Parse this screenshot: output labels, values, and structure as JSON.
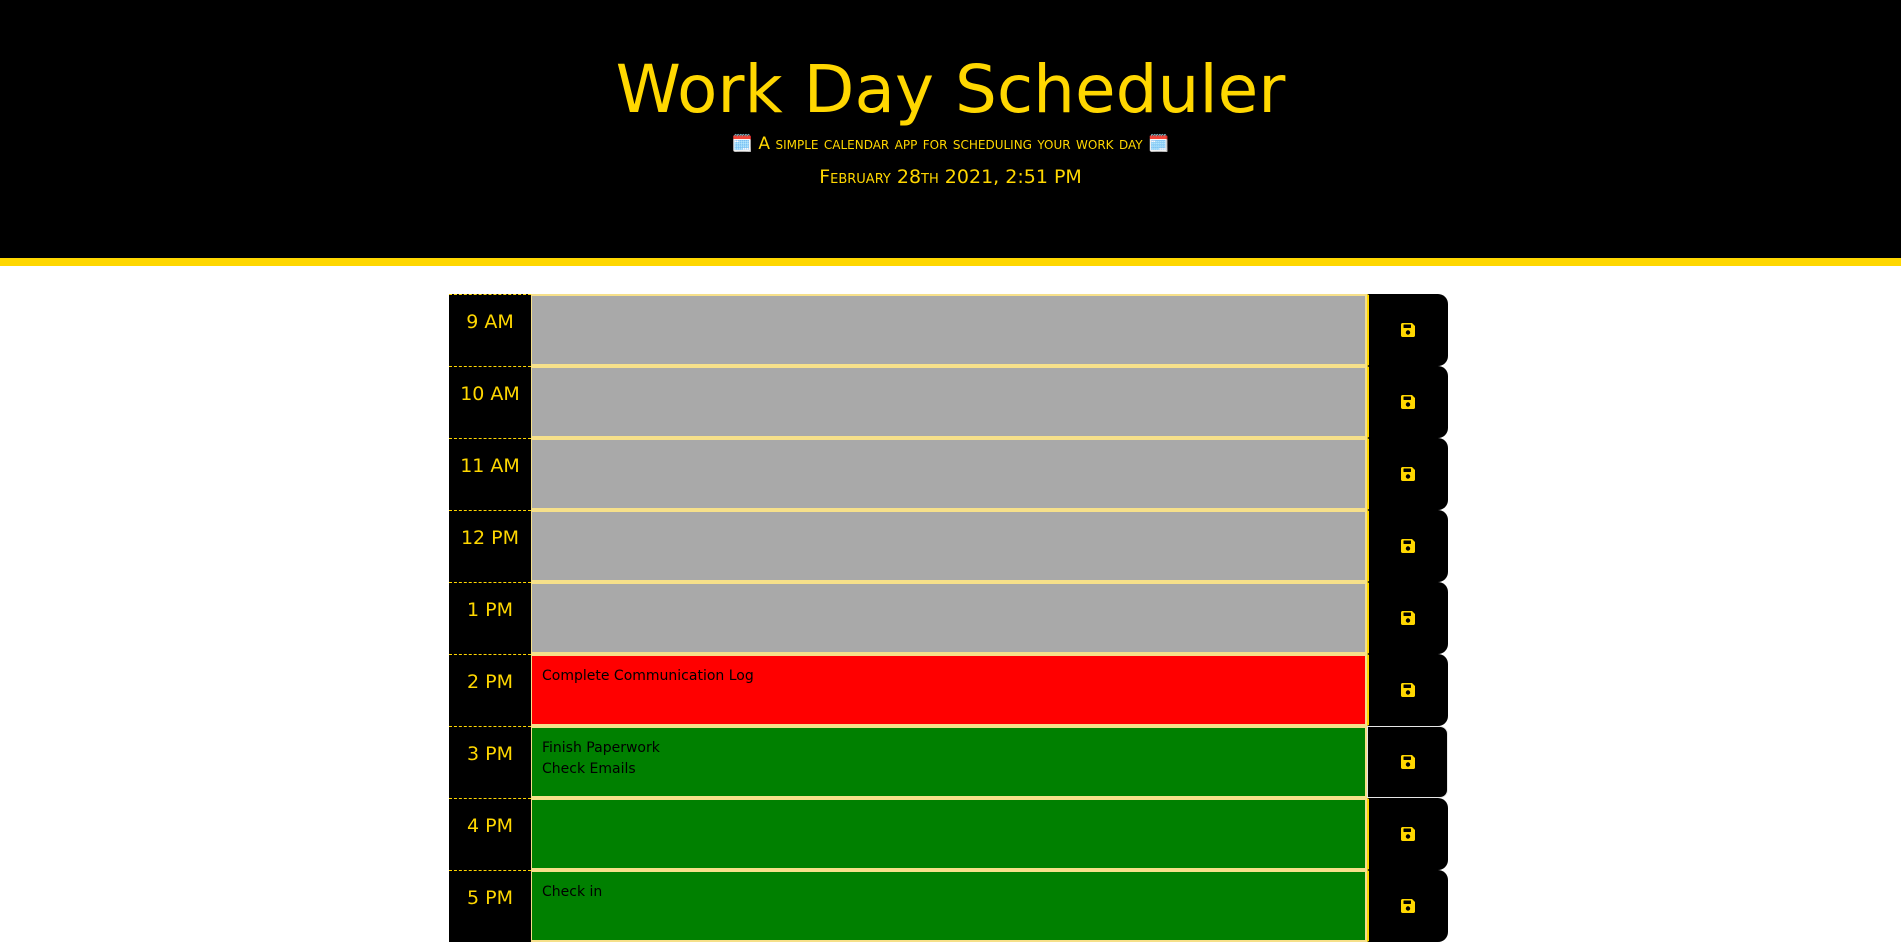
{
  "header": {
    "title": "Work Day Scheduler",
    "lead": "🗓️ A simple calendar app for scheduling your work day 🗓️",
    "current_day": "February 28th 2021, 2:51 PM"
  },
  "colors": {
    "accent": "#ffd700",
    "past": "#a9a9a9",
    "present": "#ff0000",
    "future": "#008000"
  },
  "save_icon": "floppy-disk-icon",
  "timeblocks": [
    {
      "hour": "9 AM",
      "status": "past",
      "text": ""
    },
    {
      "hour": "10 AM",
      "status": "past",
      "text": ""
    },
    {
      "hour": "11 AM",
      "status": "past",
      "text": ""
    },
    {
      "hour": "12 PM",
      "status": "past",
      "text": ""
    },
    {
      "hour": "1 PM",
      "status": "past",
      "text": ""
    },
    {
      "hour": "2 PM",
      "status": "present",
      "text": "Complete Communication Log"
    },
    {
      "hour": "3 PM",
      "status": "future",
      "text": "Finish Paperwork\nCheck Emails"
    },
    {
      "hour": "4 PM",
      "status": "future",
      "text": ""
    },
    {
      "hour": "5 PM",
      "status": "future",
      "text": "Check in"
    }
  ]
}
